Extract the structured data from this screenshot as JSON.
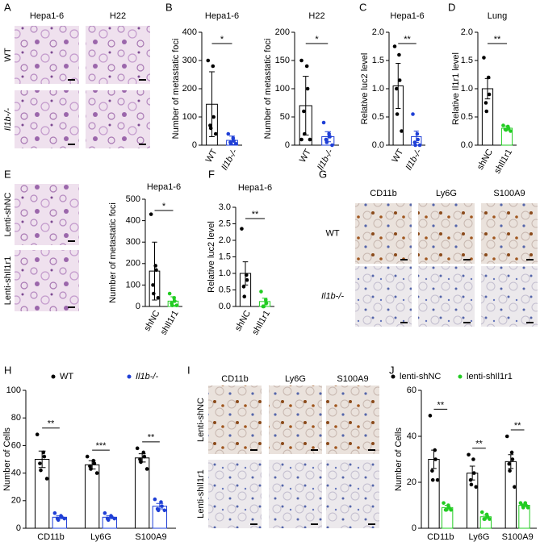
{
  "chart_data": [
    {
      "type": "dotbar",
      "panel": "B",
      "title": "Hepa1-6",
      "y_label": "Number of metastatic foci",
      "categories": [
        "WT",
        "Il1b-/-"
      ],
      "colors": [
        "#000000",
        "#1f3fd6"
      ],
      "values": [
        145,
        17
      ],
      "errors": [
        115,
        15
      ],
      "points": [
        [
          300,
          280,
          100,
          70,
          60,
          40
        ],
        [
          40,
          25,
          15,
          10,
          5,
          5
        ]
      ],
      "ylim": [
        0,
        400
      ],
      "yticks": [
        0,
        100,
        200,
        300,
        400
      ],
      "significance": "*"
    },
    {
      "type": "dotbar",
      "title": "H22",
      "y_label": "Number of metastatic foci",
      "categories": [
        "WT",
        "Il1b-/-"
      ],
      "colors": [
        "#000000",
        "#1f3fd6"
      ],
      "values": [
        70,
        15
      ],
      "errors": [
        52,
        9
      ],
      "points": [
        [
          150,
          140,
          100,
          60,
          20,
          10,
          10
        ],
        [
          40,
          20,
          15,
          10,
          5,
          0
        ]
      ],
      "ylim": [
        0,
        200
      ],
      "yticks": [
        0,
        50,
        100,
        150,
        200
      ],
      "significance": "*"
    },
    {
      "type": "dotbar",
      "panel": "C",
      "title": "Hepa1-6",
      "y_label": "Relative luc2 level",
      "categories": [
        "WT",
        "Il1b-/-"
      ],
      "colors": [
        "#000000",
        "#1f3fd6"
      ],
      "values": [
        1.05,
        0.15
      ],
      "errors": [
        0.4,
        0.1
      ],
      "points": [
        [
          1.75,
          1.6,
          1.15,
          1.0,
          0.55,
          0.25
        ],
        [
          0.55,
          0.2,
          0.1,
          0.05,
          0.0,
          0.0
        ]
      ],
      "ylim": [
        0,
        2
      ],
      "yticks": [
        {
          "value": 0,
          "label": "0.0"
        },
        {
          "value": 0.5,
          "label": "0.5"
        },
        {
          "value": 1,
          "label": "1.0"
        },
        {
          "value": 1.5,
          "label": "1.5"
        },
        {
          "value": 2,
          "label": "2.0"
        }
      ],
      "significance": "**"
    },
    {
      "type": "dotbar",
      "panel": "D",
      "title": "Lung",
      "y_label": "Relative Il1r1 level",
      "categories": [
        "shNC",
        "shIl1r1"
      ],
      "colors": [
        "#000000",
        "#22cc22"
      ],
      "values": [
        1.0,
        0.3
      ],
      "errors": [
        0.18,
        0.04
      ],
      "points": [
        [
          1.55,
          1.2,
          0.9,
          0.75,
          0.6
        ],
        [
          0.35,
          0.33,
          0.3,
          0.28,
          0.27,
          0.25
        ]
      ],
      "ylim": [
        0,
        2
      ],
      "yticks": [
        {
          "value": 0,
          "label": "0.0"
        },
        {
          "value": 0.5,
          "label": "0.5"
        },
        {
          "value": 1,
          "label": "1.0"
        },
        {
          "value": 1.5,
          "label": "1.5"
        },
        {
          "value": 2,
          "label": "2.0"
        }
      ],
      "significance": "**"
    },
    {
      "type": "dotbar",
      "panel": "E",
      "title": "Hepa1-6",
      "y_label": "Number of metastatic foci",
      "categories": [
        "shNC",
        "shIl1r1"
      ],
      "colors": [
        "#000000",
        "#22cc22"
      ],
      "values": [
        165,
        25
      ],
      "errors": [
        135,
        20
      ],
      "points": [
        [
          430,
          190,
          170,
          100,
          60,
          40
        ],
        [
          60,
          40,
          25,
          15,
          5,
          5
        ]
      ],
      "ylim": [
        0,
        500
      ],
      "yticks": [
        0,
        100,
        200,
        300,
        400,
        500
      ],
      "significance": "*"
    },
    {
      "type": "dotbar",
      "panel": "F",
      "title": "Hepa1-6",
      "y_label": "Relative luc2 level",
      "categories": [
        "shNC",
        "shIl1r1"
      ],
      "colors": [
        "#000000",
        "#22cc22"
      ],
      "values": [
        1.0,
        0.15
      ],
      "errors": [
        0.35,
        0.1
      ],
      "points": [
        [
          2.35,
          0.95,
          0.8,
          0.6,
          0.3
        ],
        [
          0.45,
          0.2,
          0.1,
          0.0,
          0.0
        ]
      ],
      "ylim": [
        0,
        3
      ],
      "yticks": [
        {
          "value": 0,
          "label": "0.0"
        },
        {
          "value": 0.5,
          "label": "0.5"
        },
        {
          "value": 1,
          "label": "1.0"
        },
        {
          "value": 1.5,
          "label": "1.5"
        },
        {
          "value": 2,
          "label": "2.0"
        },
        {
          "value": 2.5,
          "label": "2.5"
        },
        {
          "value": 3,
          "label": "3.0"
        }
      ],
      "significance": "**"
    },
    {
      "type": "grouped_dotbar",
      "panel": "H",
      "y_label": "Number of Cells",
      "categories": [
        "CD11b",
        "Ly6G",
        "S100A9"
      ],
      "series": [
        {
          "name": "WT",
          "color": "#000000",
          "values": [
            50,
            46,
            51
          ],
          "errors": [
            6,
            3,
            3
          ],
          "points": [
            [
              68,
              55,
              52,
              47,
              42,
              36
            ],
            [
              52,
              49,
              47,
              45,
              43,
              40
            ],
            [
              58,
              55,
              52,
              50,
              48,
              43
            ]
          ]
        },
        {
          "name": "Il1b-/-",
          "color": "#1f3fd6",
          "values": [
            8,
            8,
            16
          ],
          "errors": [
            1,
            1,
            2
          ],
          "points": [
            [
              11,
              9,
              8,
              7,
              6,
              7
            ],
            [
              11,
              9,
              8,
              7,
              6,
              7
            ],
            [
              21,
              19,
              16,
              14,
              13,
              13
            ]
          ]
        }
      ],
      "ylim": [
        0,
        100
      ],
      "yticks": [
        0,
        20,
        40,
        60,
        80,
        100
      ],
      "significance": [
        "**",
        "***",
        "**"
      ]
    },
    {
      "type": "grouped_dotbar",
      "panel": "J",
      "y_label": "Number of Cells",
      "categories": [
        "CD11b",
        "Ly6G",
        "S100A9"
      ],
      "series": [
        {
          "name": "lenti-shNC",
          "color": "#000000",
          "values": [
            30,
            24,
            29
          ],
          "errors": [
            4,
            3,
            3
          ],
          "points": [
            [
              49,
              34,
              30,
              25,
              21,
              21
            ],
            [
              32,
              30,
              24,
              21,
              19,
              18
            ],
            [
              40,
              33,
              30,
              28,
              25,
              18
            ]
          ]
        },
        {
          "name": "lenti-shIl1r1",
          "color": "#22cc22",
          "values": [
            9,
            5,
            10
          ],
          "errors": [
            1,
            0.7,
            0.5
          ],
          "points": [
            [
              11,
              10,
              9,
              8,
              8,
              8
            ],
            [
              7,
              6,
              5,
              4,
              4,
              4
            ],
            [
              11,
              11,
              10,
              10,
              9,
              9
            ]
          ]
        }
      ],
      "ylim": [
        0,
        60
      ],
      "yticks": [
        0,
        20,
        40,
        60
      ],
      "significance": [
        "**",
        "**",
        "**"
      ]
    }
  ],
  "image_panels": [
    {
      "panel": "A",
      "columns": [
        "Hepa1-6",
        "H22"
      ],
      "rows": [
        "WT",
        "Il1b-/-"
      ]
    },
    {
      "rows": [
        "Lenti-shNC",
        "Lenti-shIl1r1"
      ]
    },
    {
      "panel": "G",
      "columns": [
        "CD11b",
        "Ly6G",
        "S100A9"
      ],
      "rows": [
        "WT",
        "Il1b-/-"
      ]
    },
    {
      "panel": "I",
      "columns": [
        "CD11b",
        "Ly6G",
        "S100A9"
      ],
      "rows": [
        "Lenti-shNC",
        "Lenti-shIl1r1"
      ]
    }
  ]
}
